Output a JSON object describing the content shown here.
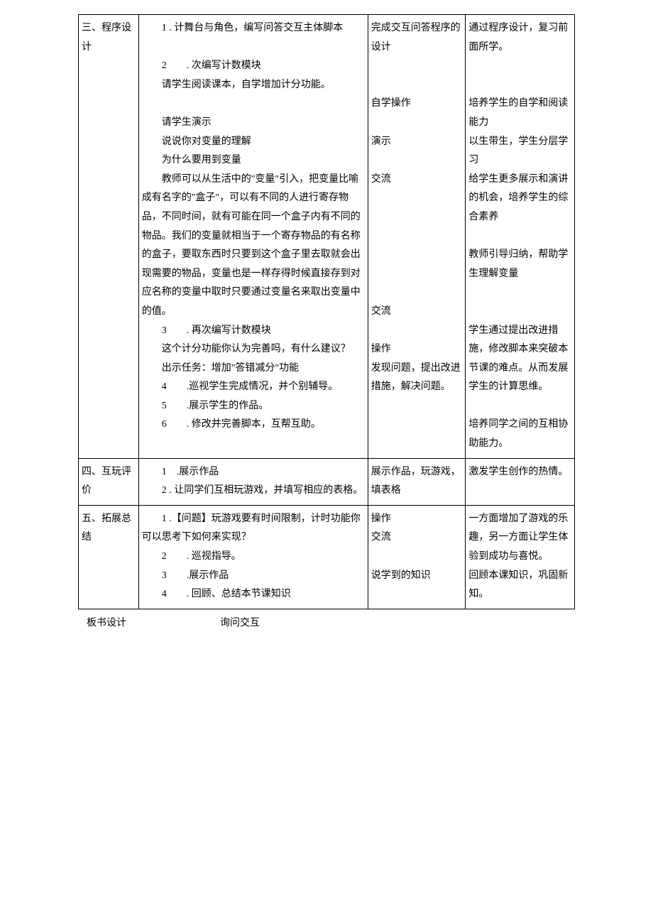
{
  "rows": [
    {
      "section": "三、程序设计",
      "teacher": [
        "　　1 . 计舞台与角色，编写问答交互主体脚本",
        "",
        "　　2　　. 次编写计数模块",
        "　　请学生阅读课本，自学增加计分功能。",
        "",
        "　　请学生演示",
        "　　说说你对变量的理解",
        "　　为什么要用到变量",
        "　　教师可以从生活中的\"变量\"引入，把变量比喻成有名字的\"盒子\"，可以有不同的人进行寄存物品，不同时间，就有可能在同一个盒子内有不同的物品。我们的变量就相当于一个寄存物品的有名称的盒子，要取东西时只要到这个盒子里去取就会出现需要的物品，变量也是一样存得时候直接存到对应名称的变量中取时只要通过变量名来取出变量中的值。",
        "　　3　　. 再次编写计数模块",
        "　　这个计分功能你认为完善吗，有什么建议？",
        "　　出示任务：增加\"答错减分\"功能",
        "　　4　　.巡视学生完成情况，并个别辅导。",
        "　　5　　.展示学生的作品。",
        "　　6　　. 修改并完善脚本，互帮互助。",
        ""
      ],
      "student": [
        "完成交互问答程序的设计",
        "",
        "",
        "自学操作",
        "",
        "演示",
        "",
        "交流",
        "",
        "",
        "",
        "",
        "",
        "",
        "交流",
        "",
        "操作",
        "发现问题，提出改进措施，解决问题。"
      ],
      "intent": [
        "通过程序设计，复习前面所学。",
        "",
        "",
        "培养学生的自学和阅读能力",
        "以生带生，学生分层学习",
        "给学生更多展示和演讲的机会，培养学生的综合素养",
        "",
        "教师引导归纳，帮助学生理解变量",
        "",
        "",
        "学生通过提出改进措施，修改脚本来突破本节课的难点。从而发展学生的计算思维。",
        "",
        "培养同学之间的互相协助能力。"
      ]
    },
    {
      "section": "四、互玩评价",
      "teacher": [
        "　　1　.展示作品",
        "　　2 . 让同学们互相玩游戏，并填写相应的表格。"
      ],
      "student": [
        "展示作品，玩游戏，填表格"
      ],
      "intent": [
        "激发学生创作的热情。"
      ]
    },
    {
      "section": "五、拓展总结",
      "teacher": [
        "　　1 .【问题】玩游戏要有时间限制，计时功能你可以思考下如何来实现？",
        "　　2　　. 巡视指导。",
        "　　3　　.展示作品",
        "　　4　　. 回顾、总结本节课知识"
      ],
      "student": [
        "操作",
        "交流",
        "",
        "说学到的知识"
      ],
      "intent": [
        "一方面增加了游戏的乐趣，另一方面让学生体验到成功与喜悦。",
        "回顾本课知识，巩固新知。"
      ]
    }
  ],
  "footer": {
    "label": "板书设计",
    "content": "询问交互"
  }
}
